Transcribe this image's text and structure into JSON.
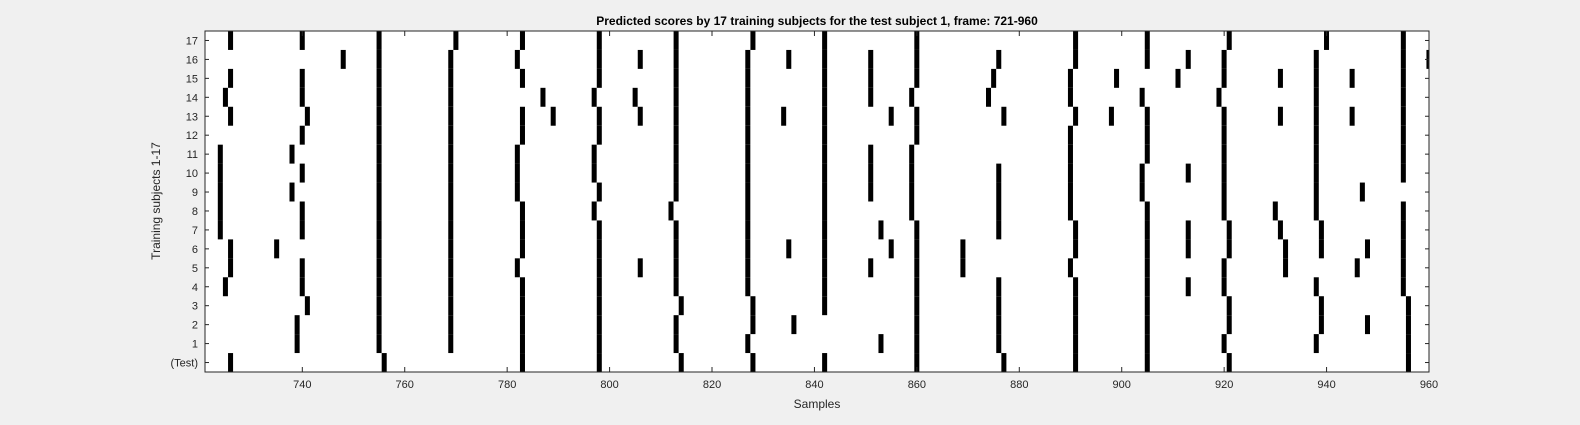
{
  "chart_data": {
    "type": "raster",
    "title": "Predicted scores by 17 training subjects for the test subject 1, frame: 721-960",
    "xlabel": "Samples",
    "ylabel": "Training subjects 1-17",
    "xlim": [
      721,
      960
    ],
    "xticks": [
      740,
      760,
      780,
      800,
      820,
      840,
      860,
      880,
      900,
      920,
      940,
      960
    ],
    "grid": false,
    "legend": "none",
    "colors": {
      "background": "#f0f0f0",
      "plot": "#ffffff",
      "mark": "#000000",
      "axis": "#262626"
    },
    "rows": [
      {
        "label": "(Test)",
        "events": [
          726,
          756,
          783,
          798,
          814,
          828,
          842,
          860,
          877,
          891,
          905,
          921,
          956
        ]
      },
      {
        "label": "1",
        "events": [
          739,
          755,
          769,
          783,
          798,
          813,
          827,
          853,
          860,
          876,
          891,
          905,
          920,
          938,
          956
        ]
      },
      {
        "label": "2",
        "events": [
          739,
          755,
          769,
          783,
          798,
          813,
          828,
          836,
          860,
          876,
          891,
          905,
          921,
          939,
          948,
          956
        ]
      },
      {
        "label": "3",
        "events": [
          741,
          755,
          769,
          783,
          798,
          814,
          828,
          842,
          860,
          876,
          891,
          905,
          921,
          939,
          956
        ]
      },
      {
        "label": "4",
        "events": [
          725,
          740,
          755,
          769,
          783,
          798,
          813,
          827,
          842,
          860,
          876,
          891,
          905,
          913,
          920,
          938,
          955
        ]
      },
      {
        "label": "5",
        "events": [
          726,
          740,
          755,
          769,
          782,
          798,
          806,
          813,
          827,
          842,
          851,
          860,
          869,
          890,
          905,
          920,
          932,
          946,
          955
        ]
      },
      {
        "label": "6",
        "events": [
          726,
          735,
          755,
          769,
          783,
          798,
          813,
          827,
          835,
          842,
          855,
          860,
          869,
          891,
          905,
          913,
          921,
          932,
          939,
          948,
          955
        ]
      },
      {
        "label": "7",
        "events": [
          724,
          740,
          755,
          769,
          783,
          798,
          813,
          827,
          842,
          853,
          860,
          876,
          891,
          905,
          913,
          921,
          931,
          939,
          955
        ]
      },
      {
        "label": "8",
        "events": [
          724,
          740,
          755,
          769,
          783,
          797,
          812,
          827,
          842,
          859,
          876,
          890,
          905,
          920,
          930,
          938,
          955
        ]
      },
      {
        "label": "9",
        "events": [
          724,
          738,
          755,
          769,
          782,
          798,
          813,
          827,
          842,
          851,
          859,
          876,
          890,
          904,
          920,
          938,
          947
        ]
      },
      {
        "label": "10",
        "events": [
          724,
          740,
          755,
          769,
          782,
          797,
          813,
          827,
          842,
          851,
          859,
          876,
          890,
          904,
          913,
          920,
          938,
          955
        ]
      },
      {
        "label": "11",
        "events": [
          724,
          738,
          755,
          769,
          782,
          797,
          813,
          827,
          842,
          851,
          859,
          890,
          905,
          920,
          938,
          955
        ]
      },
      {
        "label": "12",
        "events": [
          740,
          755,
          769,
          783,
          798,
          813,
          827,
          842,
          860,
          890,
          905,
          920,
          938,
          955
        ]
      },
      {
        "label": "13",
        "events": [
          726,
          741,
          755,
          769,
          783,
          789,
          798,
          806,
          813,
          827,
          834,
          842,
          855,
          860,
          877,
          891,
          898,
          905,
          920,
          931,
          938,
          945,
          955
        ]
      },
      {
        "label": "14",
        "events": [
          725,
          740,
          755,
          769,
          787,
          797,
          805,
          813,
          827,
          842,
          851,
          859,
          874,
          890,
          904,
          919,
          938,
          955
        ]
      },
      {
        "label": "15",
        "events": [
          726,
          740,
          755,
          769,
          783,
          798,
          813,
          827,
          842,
          851,
          860,
          875,
          890,
          899,
          911,
          920,
          931,
          938,
          945,
          955
        ]
      },
      {
        "label": "16",
        "events": [
          748,
          755,
          769,
          782,
          798,
          806,
          813,
          827,
          835,
          842,
          851,
          860,
          876,
          891,
          905,
          913,
          920,
          938,
          955,
          960
        ]
      },
      {
        "label": "17",
        "events": [
          726,
          740,
          755,
          770,
          783,
          798,
          813,
          828,
          842,
          860,
          891,
          905,
          921,
          940,
          955
        ]
      }
    ]
  }
}
